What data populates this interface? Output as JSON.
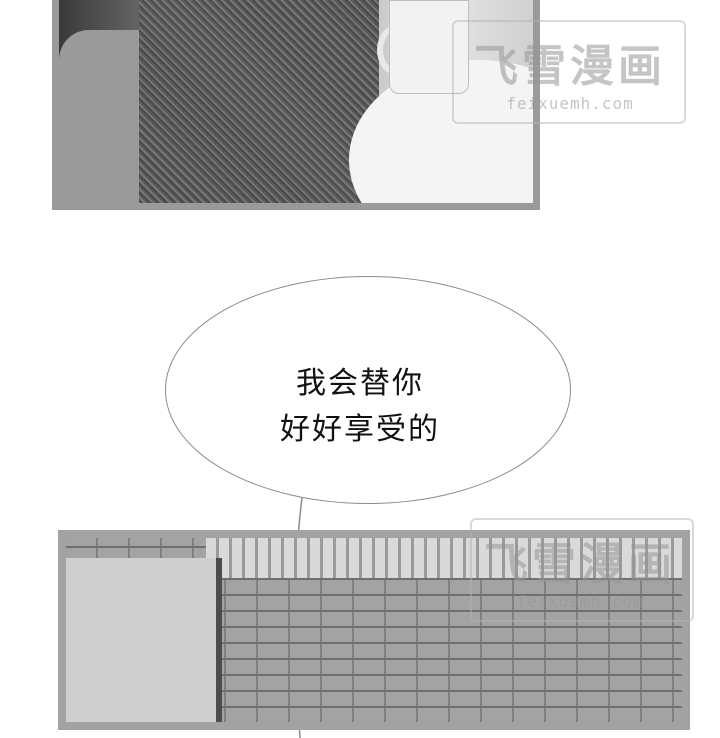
{
  "dialogue": {
    "line1": "我会替你",
    "line2": "好好享受的"
  },
  "watermark": {
    "title": "飞雪漫画",
    "url": "feixuemh.com"
  }
}
